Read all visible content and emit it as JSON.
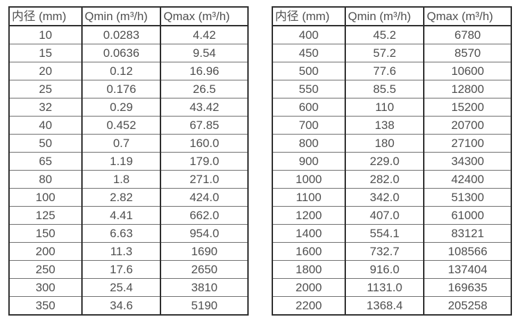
{
  "page": {
    "background": "#ffffff",
    "text_color": "#4f4f4f",
    "border_dark": "#2e2e2e",
    "border_light": "#6e6e6e"
  },
  "tables": [
    {
      "name": "flow-table-small-diameters",
      "headers": [
        "内径 (mm)",
        "Qmin (m³/h)",
        "Qmax (m³/h)"
      ],
      "rows": [
        [
          "10",
          "0.0283",
          "4.42"
        ],
        [
          "15",
          "0.0636",
          "9.54"
        ],
        [
          "20",
          "0.12",
          "16.96"
        ],
        [
          "25",
          "0.176",
          "26.5"
        ],
        [
          "32",
          "0.29",
          "43.42"
        ],
        [
          "40",
          "0.452",
          "67.85"
        ],
        [
          "50",
          "0.7",
          "160.0"
        ],
        [
          "65",
          "1.19",
          "179.0"
        ],
        [
          "80",
          "1.8",
          "271.0"
        ],
        [
          "100",
          "2.82",
          "424.0"
        ],
        [
          "125",
          "4.41",
          "662.0"
        ],
        [
          "150",
          "6.63",
          "954.0"
        ],
        [
          "200",
          "11.3",
          "1690"
        ],
        [
          "250",
          "17.6",
          "2650"
        ],
        [
          "300",
          "25.4",
          "3810"
        ],
        [
          "350",
          "34.6",
          "5190"
        ]
      ]
    },
    {
      "name": "flow-table-large-diameters",
      "headers": [
        "内径 (mm)",
        "Qmin (m³/h)",
        "Qmax (m³/h)"
      ],
      "rows": [
        [
          "400",
          "45.2",
          "6780"
        ],
        [
          "450",
          "57.2",
          "8570"
        ],
        [
          "500",
          "77.6",
          "10600"
        ],
        [
          "550",
          "85.5",
          "12800"
        ],
        [
          "600",
          "110",
          "15200"
        ],
        [
          "700",
          "138",
          "20700"
        ],
        [
          "800",
          "180",
          "27100"
        ],
        [
          "900",
          "229.0",
          "34300"
        ],
        [
          "1000",
          "282.0",
          "42400"
        ],
        [
          "1100",
          "342.0",
          "51300"
        ],
        [
          "1200",
          "407.0",
          "61000"
        ],
        [
          "1400",
          "554.1",
          "83121"
        ],
        [
          "1600",
          "732.7",
          "108566"
        ],
        [
          "1800",
          "916.0",
          "137404"
        ],
        [
          "2000",
          "1131.0",
          "169635"
        ],
        [
          "2200",
          "1368.4",
          "205258"
        ]
      ]
    }
  ]
}
